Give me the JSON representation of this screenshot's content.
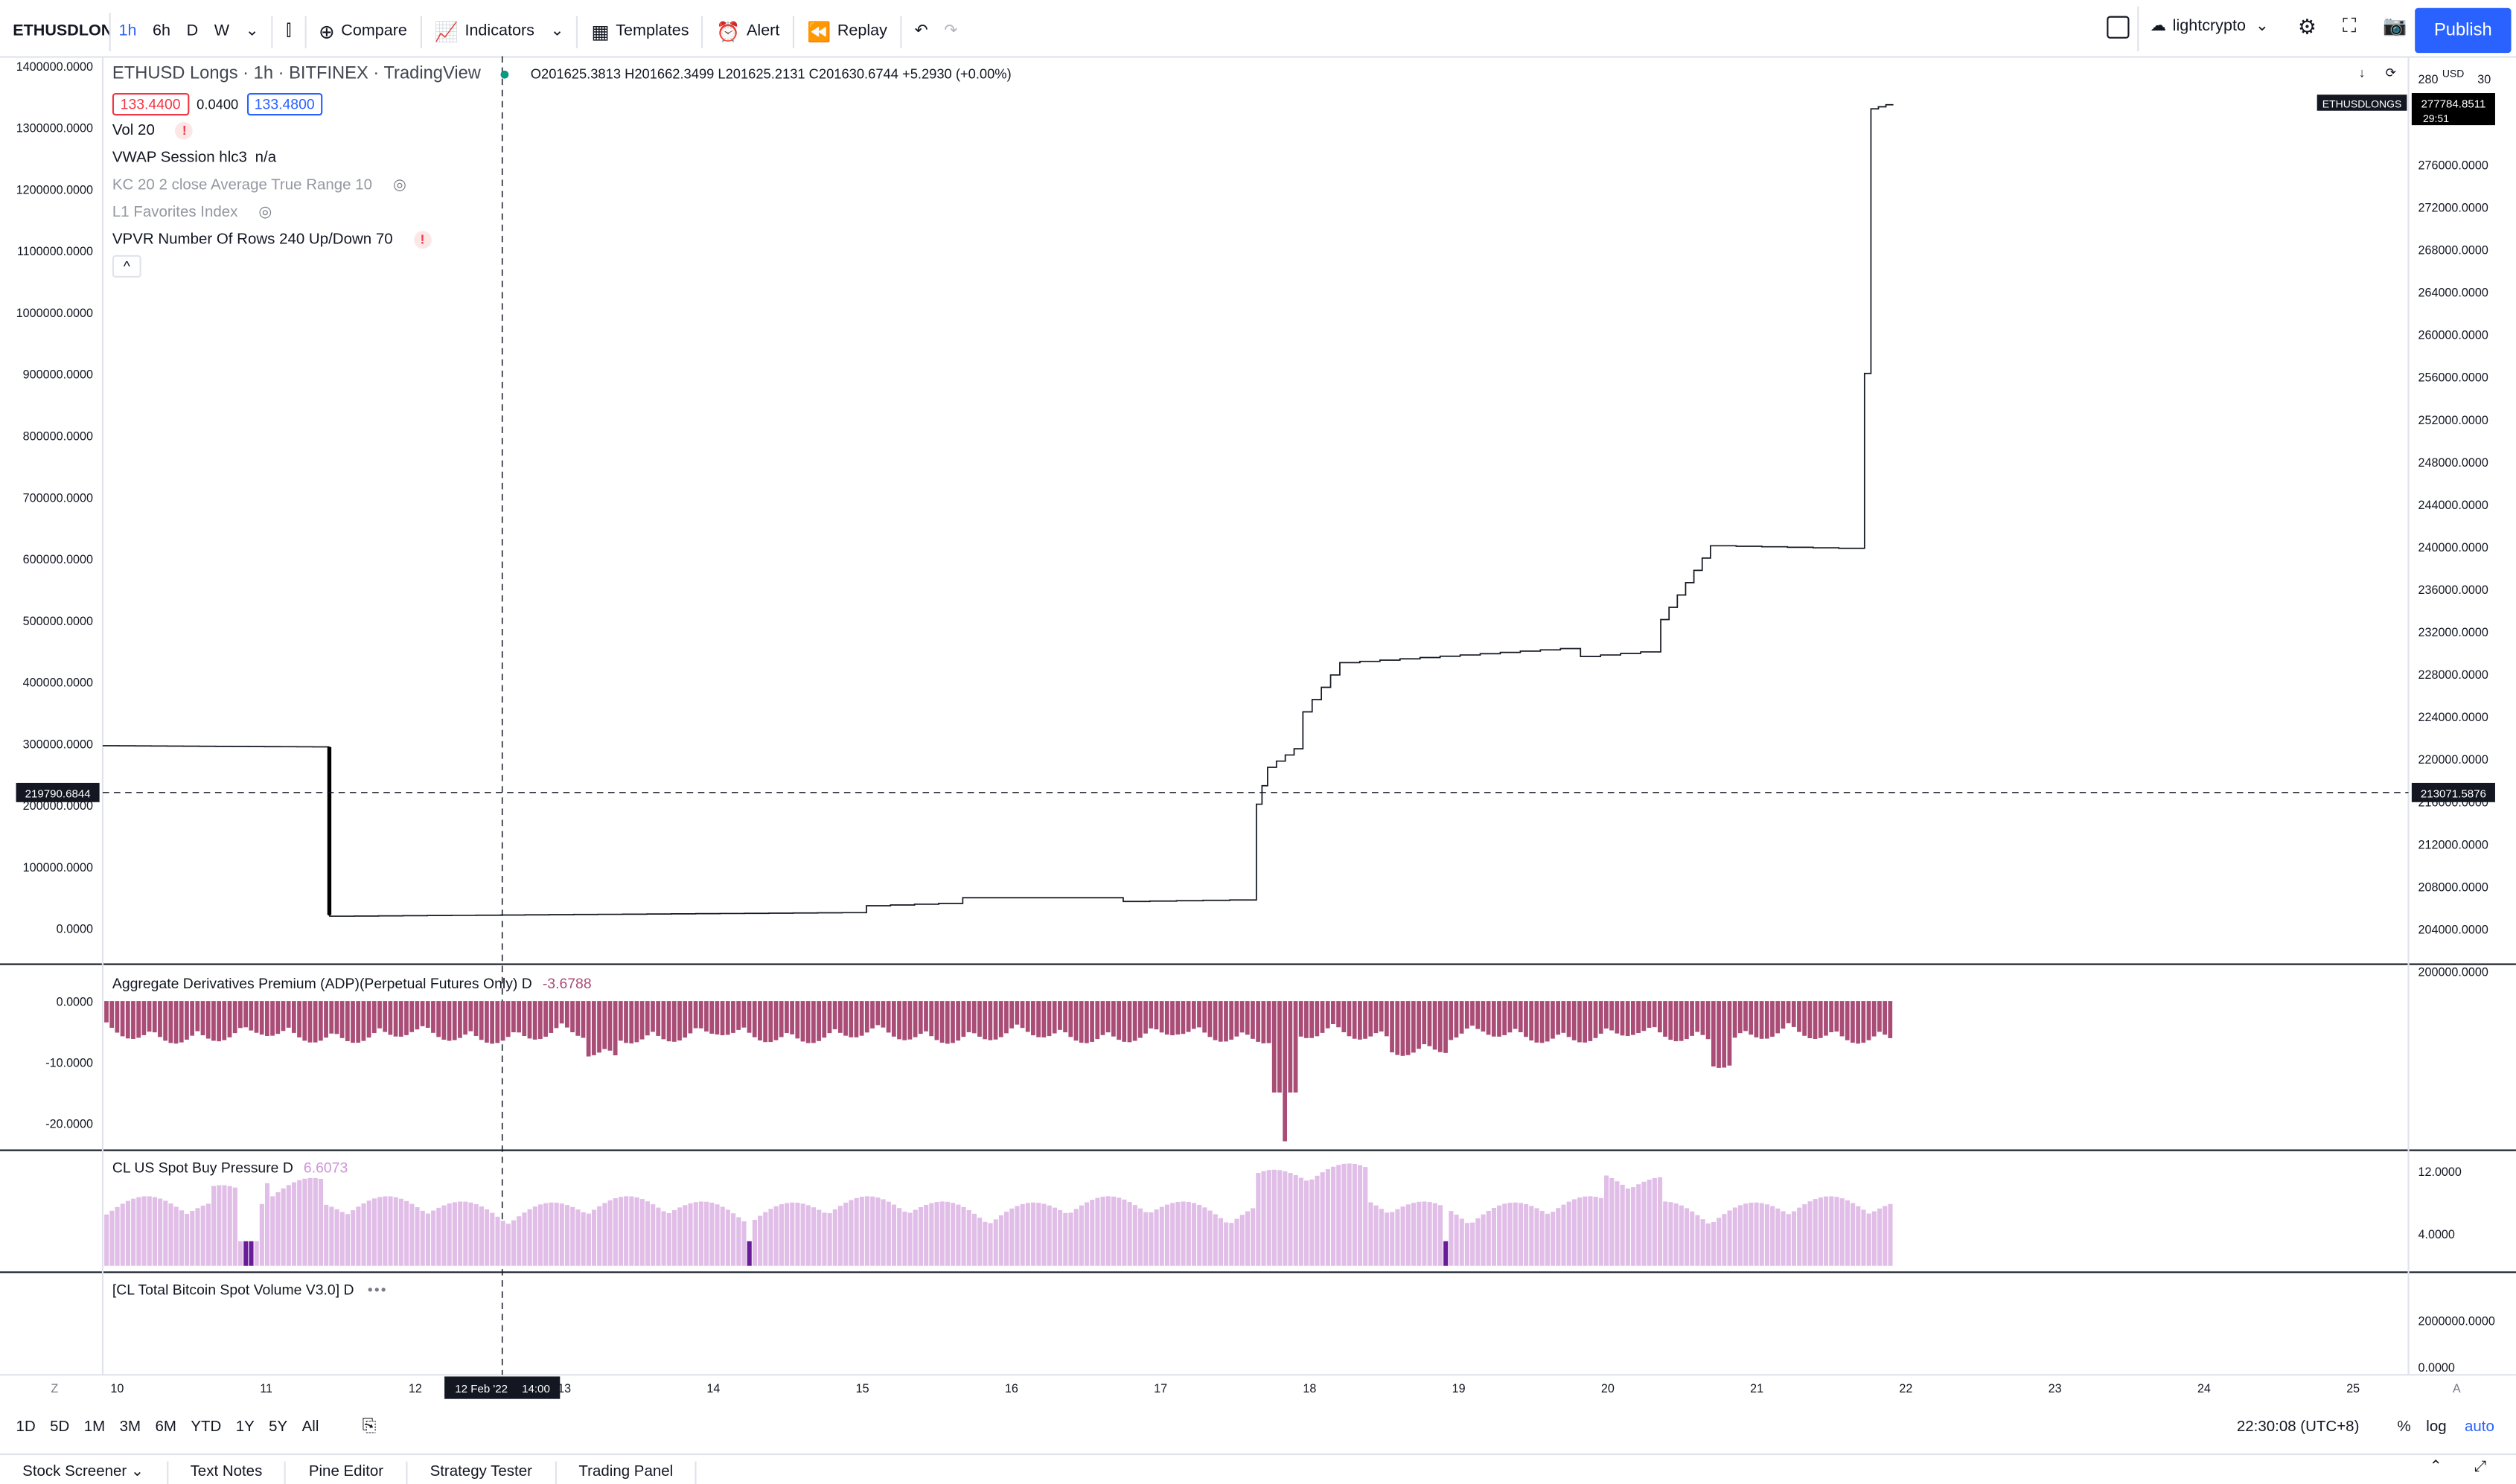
{
  "toolbar": {
    "symbol": "ETHUSDLONGS",
    "intervals": [
      "1h",
      "6h",
      "D",
      "W"
    ],
    "compare": "Compare",
    "indicators": "Indicators",
    "templates": "Templates",
    "alert": "Alert",
    "replay": "Replay",
    "username": "lightcrypto",
    "publish": "Publish"
  },
  "legend": {
    "title": "ETHUSD Longs · 1h · BITFINEX · TradingView",
    "ohlc": "O201625.3813 H201662.3499 L201625.2131 C201630.6744 +5.2930 (+0.00%)",
    "bid": "133.4400",
    "spread": "0.0400",
    "ask": "133.4800",
    "studies": [
      {
        "label": "Vol 20",
        "value": "",
        "state": "error"
      },
      {
        "label": "VWAP Session hlc3",
        "value": "n/a",
        "state": "normal"
      },
      {
        "label": "KC 20 2 close Average True Range 10",
        "value": "",
        "state": "hidden"
      },
      {
        "label": "L1 Favorites Index",
        "value": "",
        "state": "hidden"
      },
      {
        "label": "VPVR Number Of Rows 240 Up/Down 70",
        "value": "",
        "state": "error"
      }
    ]
  },
  "main_axis": {
    "left_ticks": [
      "1400000.0000",
      "1300000.0000",
      "1200000.0000",
      "1100000.0000",
      "1000000.0000",
      "900000.0000",
      "800000.0000",
      "700000.0000",
      "600000.0000",
      "500000.0000",
      "400000.0000",
      "300000.0000",
      "200000.0000",
      "100000.0000",
      "0.0000"
    ],
    "right_ticks": [
      "276000.0000",
      "272000.0000",
      "268000.0000",
      "264000.0000",
      "260000.0000",
      "256000.0000",
      "252000.0000",
      "248000.0000",
      "244000.0000",
      "240000.0000",
      "236000.0000",
      "232000.0000",
      "228000.0000",
      "224000.0000",
      "220000.0000",
      "216000.0000",
      "212000.0000",
      "208000.0000",
      "204000.0000",
      "200000.0000"
    ],
    "right_top": "280",
    "right_top2": "30",
    "currency": "USD",
    "crosshair_left": "219790.6844",
    "crosshair_right": "213071.5876",
    "last_label": "ETHUSDLONGS",
    "last_price": "277784.8511",
    "countdown": "29:51"
  },
  "panes": {
    "adp": {
      "title": "Aggregate Derivatives Premium (ADP)(Perpetual Futures Only) D",
      "value": "-3.6788",
      "ticks": [
        "0.0000",
        "-10.0000",
        "-20.0000"
      ],
      "color": "#a94c76"
    },
    "buy": {
      "title": "CL US Spot Buy Pressure D",
      "value": "6.6073",
      "ticks": [
        "12.0000",
        "4.0000"
      ],
      "color": "#e1bee7"
    },
    "vol": {
      "title": "[CL Total Bitcoin Spot Volume V3.0] D",
      "ticks": [
        "2000000.0000",
        "0.0000"
      ]
    }
  },
  "time_axis": {
    "labels": [
      "10",
      "11",
      "12",
      "13",
      "14",
      "15",
      "16",
      "17",
      "18",
      "19",
      "20",
      "21",
      "22",
      "23",
      "24",
      "25"
    ],
    "crosshair": "12 Feb '22",
    "crosshair_time": "14:00"
  },
  "bottom": {
    "ranges": [
      "1D",
      "5D",
      "1M",
      "3M",
      "6M",
      "YTD",
      "1Y",
      "5Y",
      "All"
    ],
    "clock": "22:30:08 (UTC+8)",
    "pct": "%",
    "log": "log",
    "auto": "auto"
  },
  "bottom_tabs": [
    "Stock Screener",
    "Text Notes",
    "Pine Editor",
    "Strategy Tester",
    "Trading Panel"
  ],
  "chart_data": {
    "type": "line",
    "x": [
      "10",
      "11",
      "12",
      "13",
      "14",
      "15",
      "16",
      "17",
      "18",
      "19",
      "20",
      "21",
      "22"
    ],
    "series": [
      {
        "values": [
          295000,
          293000,
          20000,
          22000,
          24000,
          24000,
          50000,
          45000,
          260000,
          430000,
          445000,
          620000,
          1330000
        ]
      }
    ],
    "ylim": [
      0,
      1400000
    ]
  }
}
